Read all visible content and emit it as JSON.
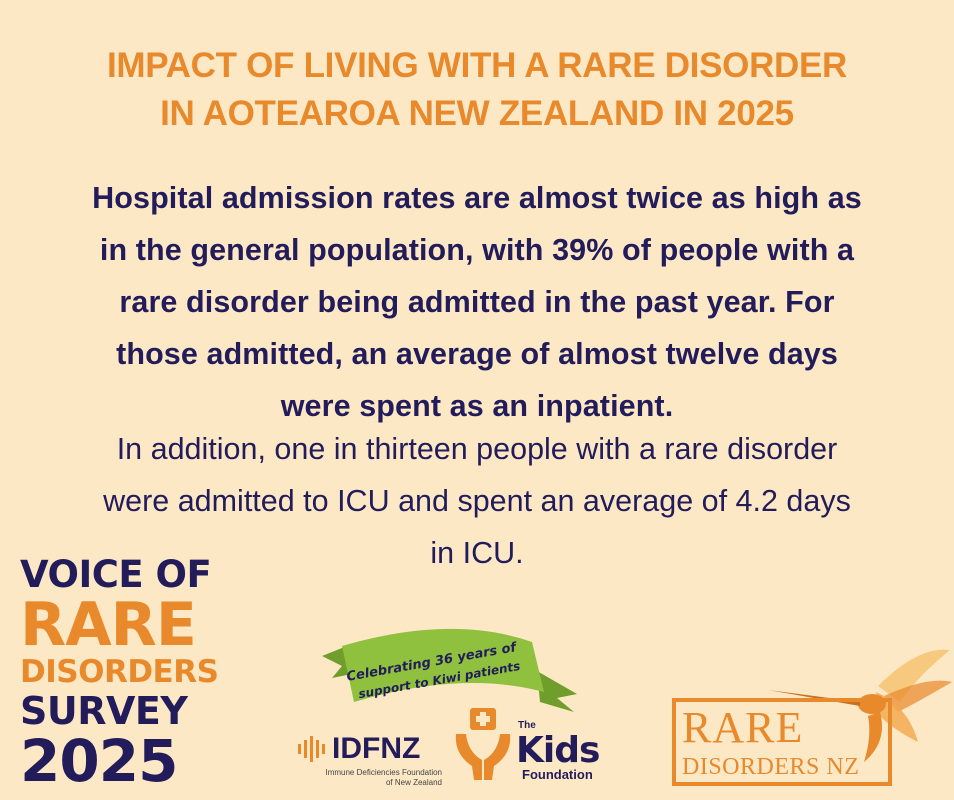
{
  "title": {
    "line1": "IMPACT OF LIVING WITH A RARE DISORDER",
    "line2": "IN AOTEAROA NEW ZEALAND IN 2025"
  },
  "body": {
    "lead_lines": [
      "Hospital admission rates are almost twice as high as",
      "in the general population, with 39% of people with a",
      "rare disorder being admitted in the past year. For",
      "those admitted, an average of almost twelve days",
      "were spent as an inpatient."
    ],
    "follow_lines": [
      "In addition, one in thirteen people with a rare disorder",
      "were admitted to ICU and spent an average of 4.2 days",
      "in ICU."
    ]
  },
  "survey_logo": {
    "line1": "VOICE OF",
    "line2": "RARE",
    "line3": "DISORDERS",
    "line4": "SURVEY",
    "line5": "2025"
  },
  "banner": {
    "line1": "Celebrating 36 years of",
    "line2": "support to Kiwi patients"
  },
  "idfnz": {
    "name": "IDFNZ",
    "sub_line1": "Immune Deficiencies Foundation",
    "sub_line2": "of New Zealand"
  },
  "kids_foundation": {
    "the": "The",
    "name": "Kids",
    "foundation": "Foundation"
  },
  "rare_disorders_nz": {
    "line1": "RARE",
    "line2": "DISORDERS NZ"
  },
  "colors": {
    "background": "#fde8c6",
    "accent_orange": "#e8892b",
    "navy": "#231c5a",
    "banner_green": "#8fc13e"
  }
}
